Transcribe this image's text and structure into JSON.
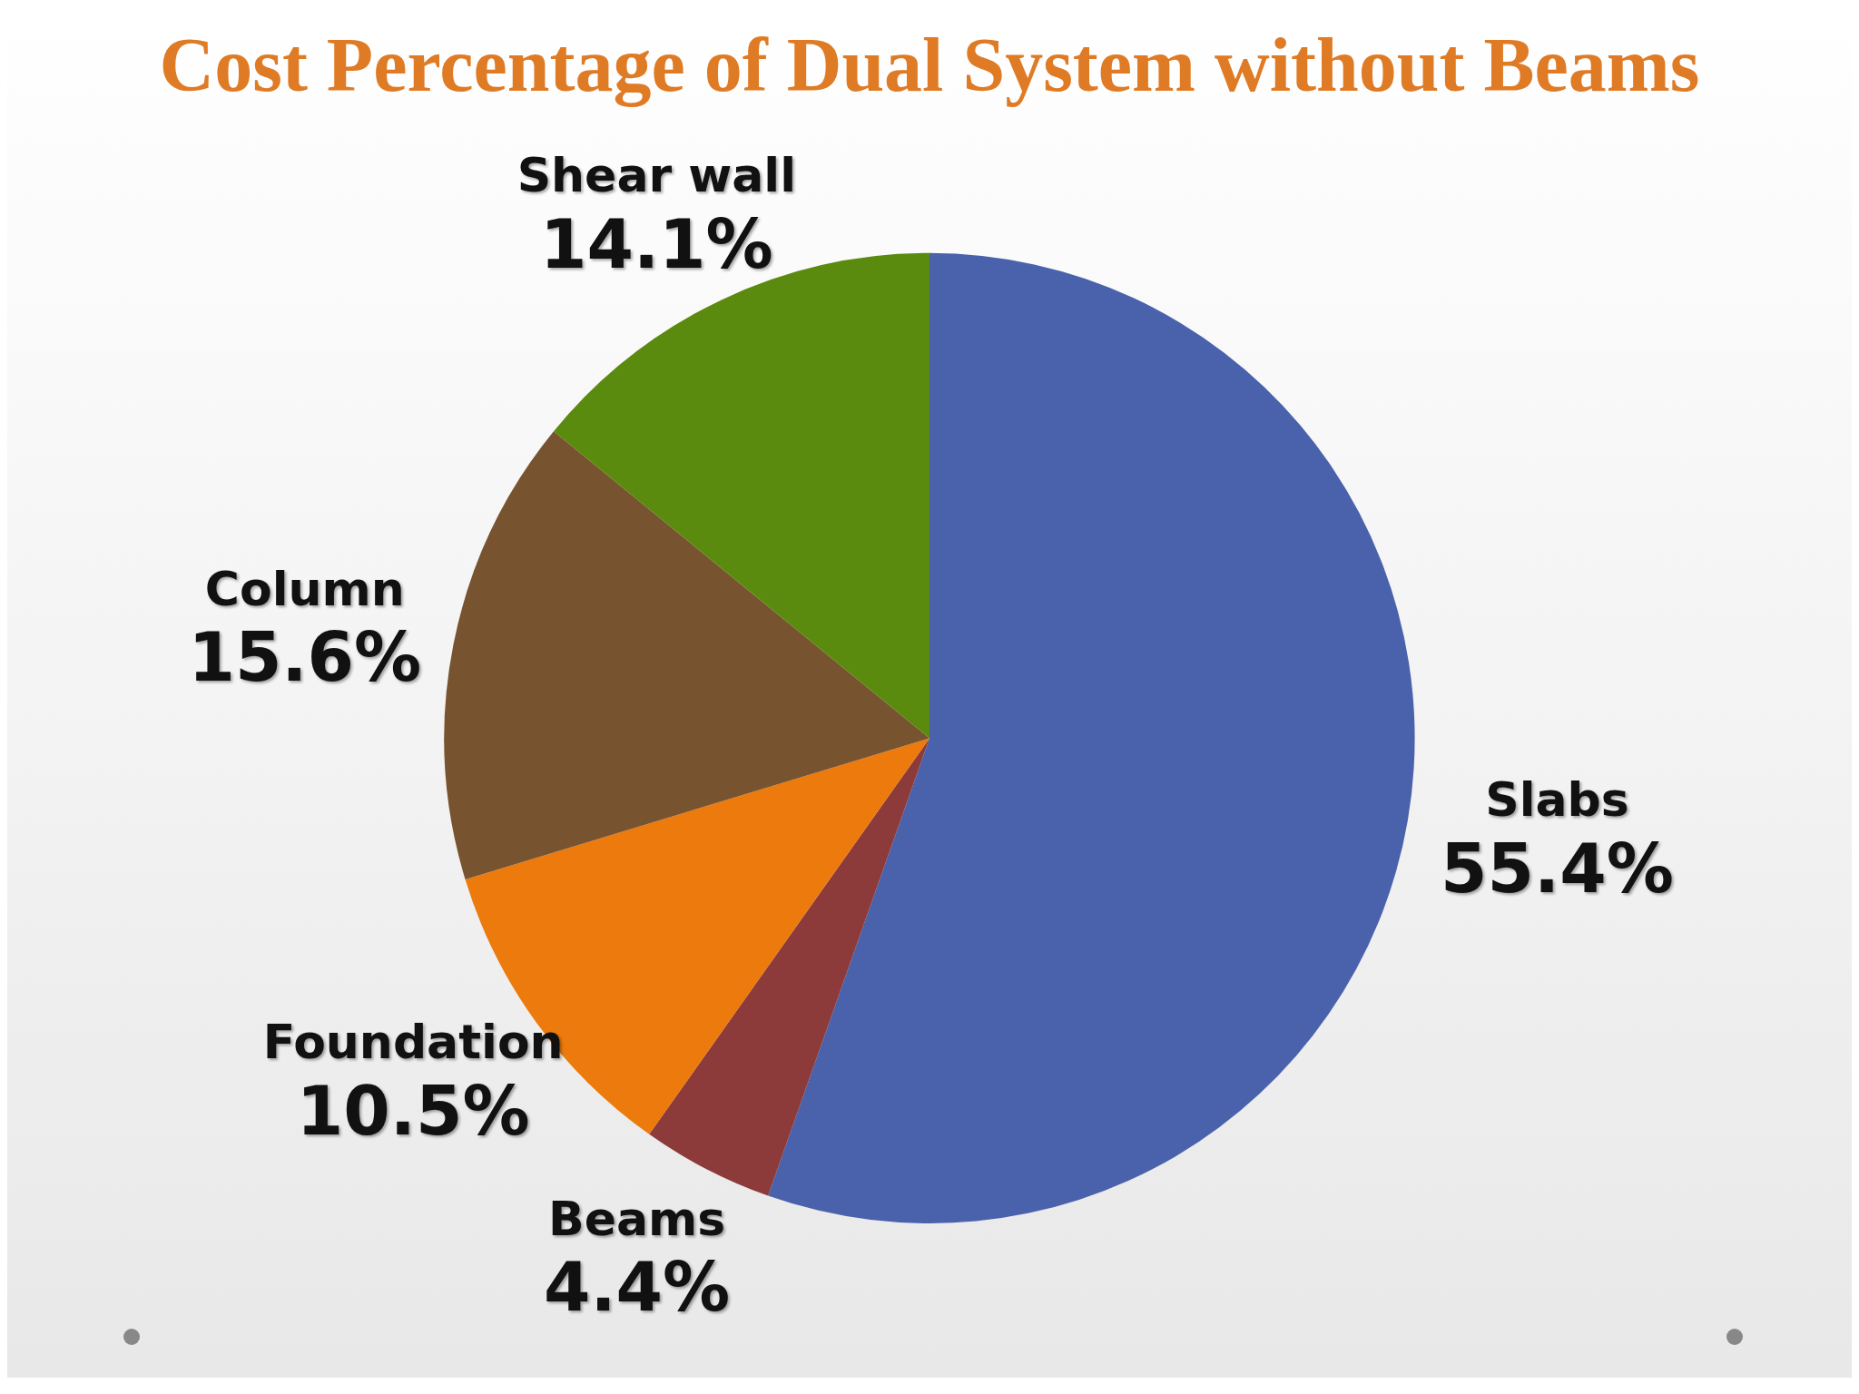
{
  "chart_data": {
    "type": "pie",
    "title": "Cost Percentage of Dual System without Beams",
    "categories": [
      "Slabs",
      "Beams",
      "Foundation",
      "Column",
      "Shear wall"
    ],
    "values": [
      55.4,
      4.4,
      10.5,
      15.6,
      14.1
    ],
    "value_labels": [
      "55.4%",
      "4.4%",
      "10.5%",
      "15.6%",
      "14.1%"
    ],
    "colors": [
      "#4a62ab",
      "#8c3a3a",
      "#ec7a0c",
      "#77532f",
      "#5a8a0e"
    ],
    "legend": false
  }
}
